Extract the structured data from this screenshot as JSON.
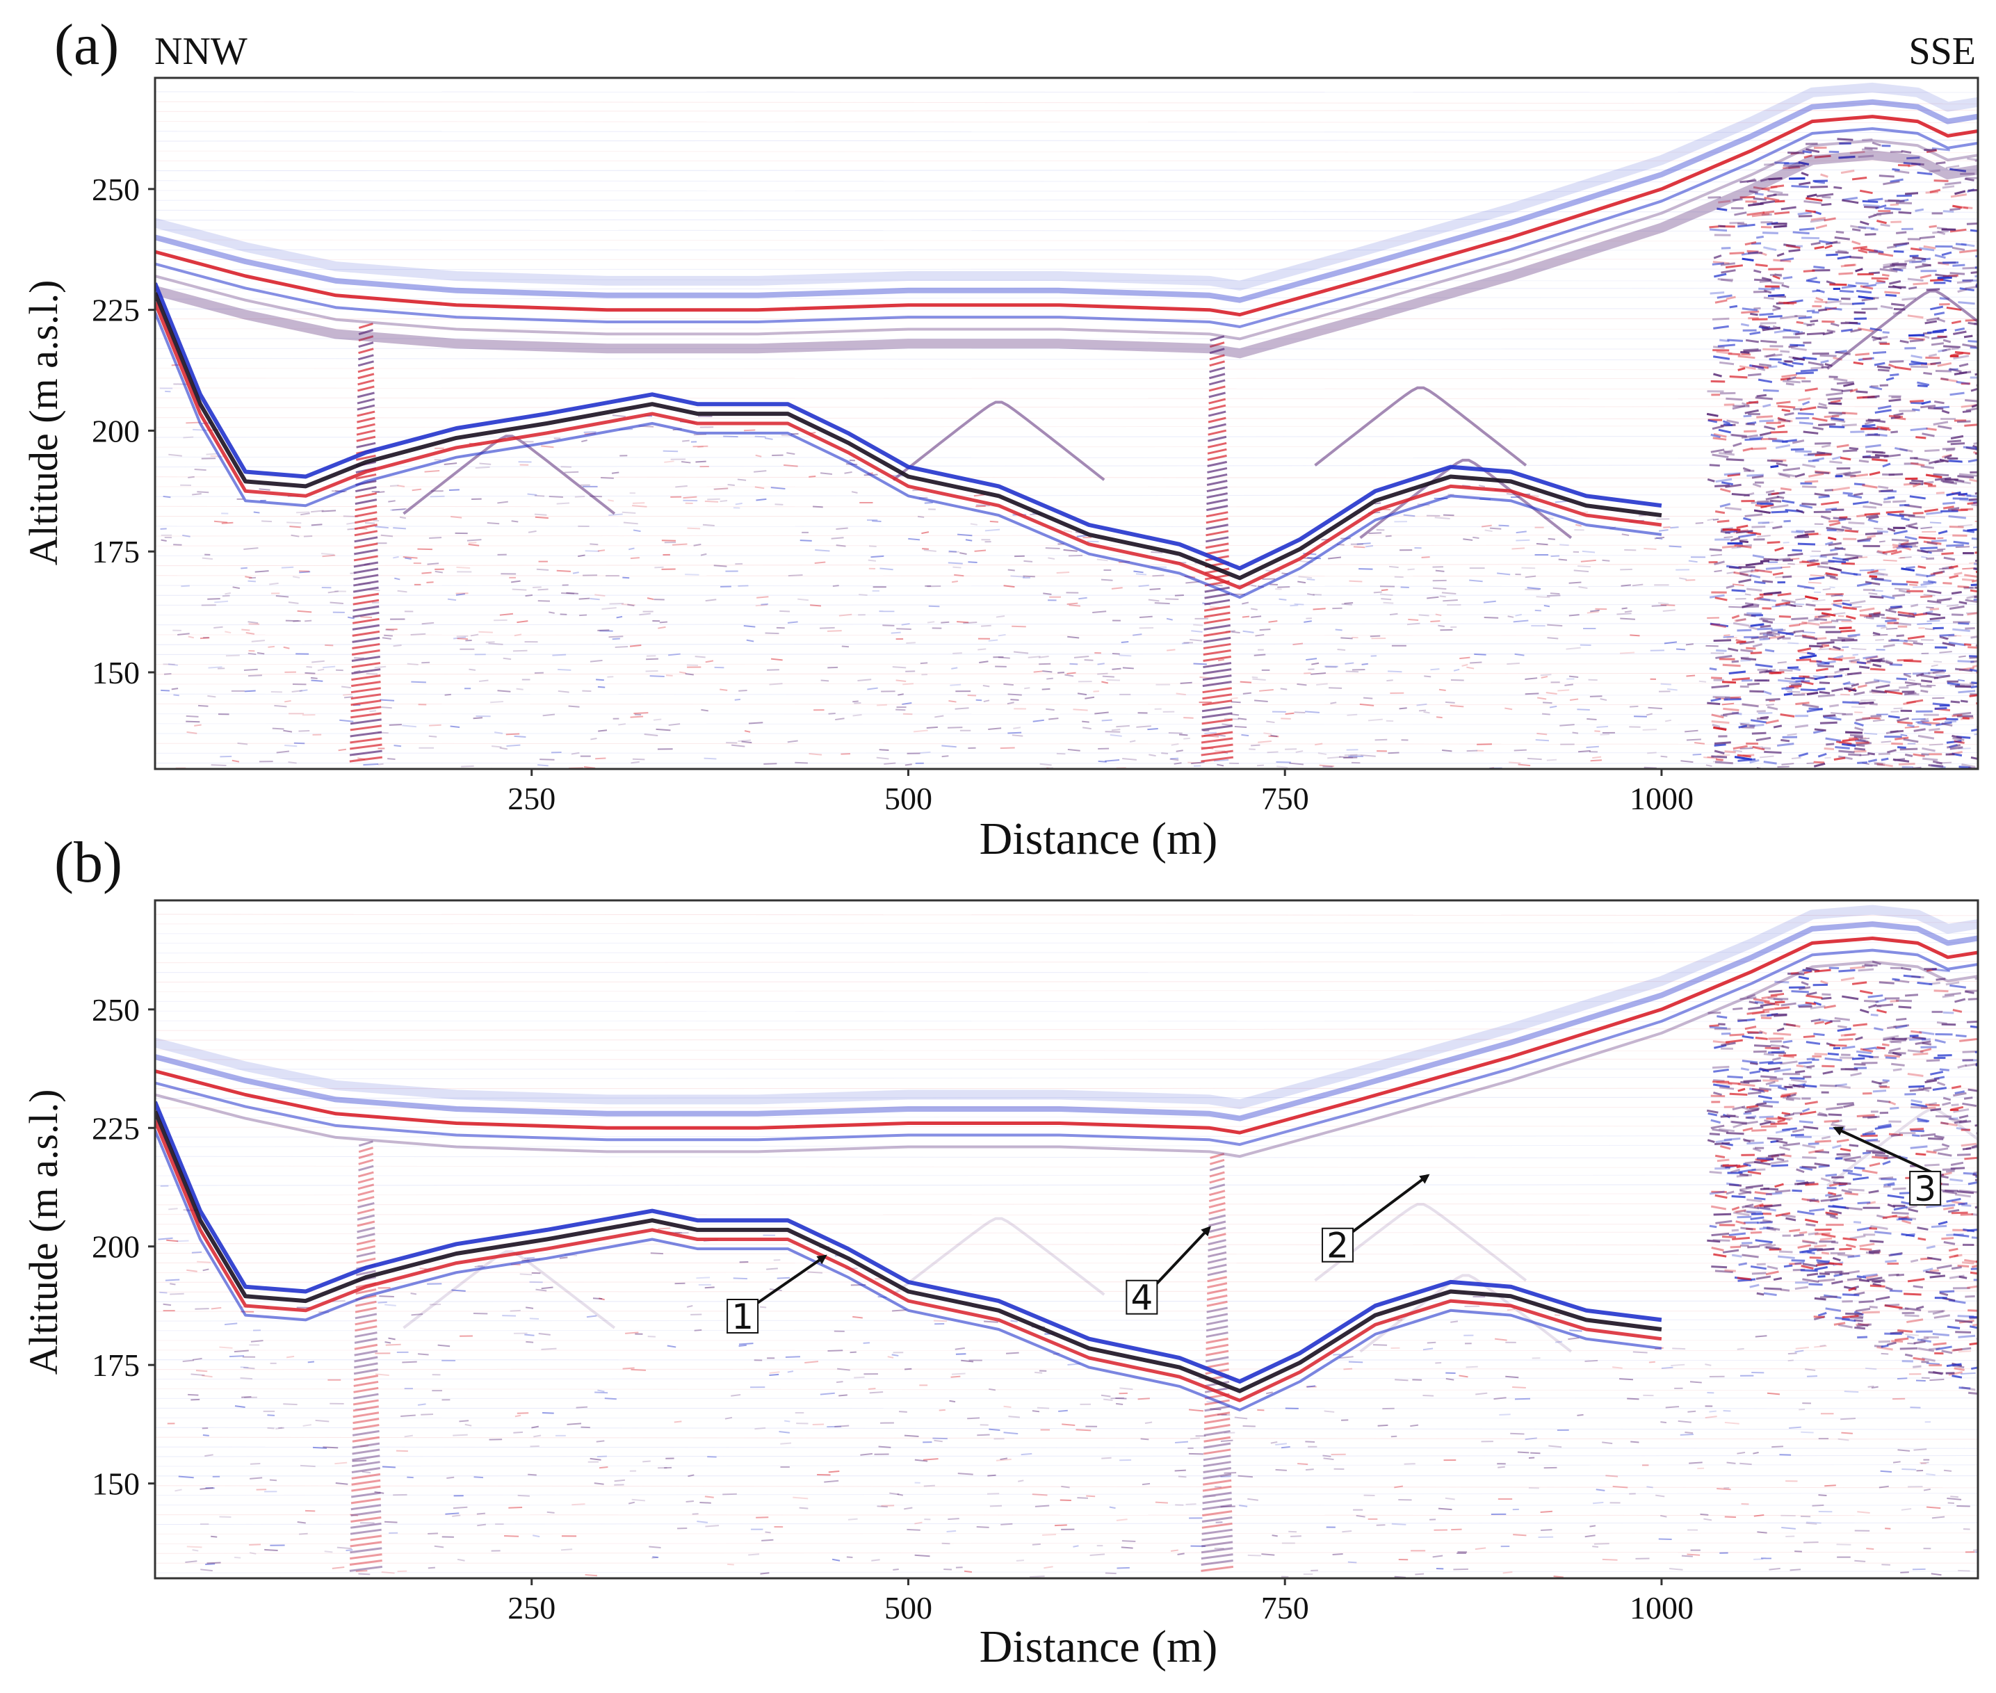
{
  "chart_data": [
    {
      "type": "line",
      "panel_label": "(a)",
      "direction_left": "NNW",
      "direction_right": "SSE",
      "xlabel": "Distance (m)",
      "ylabel": "Altitude (m a.s.l.)",
      "xlim": [
        0,
        1210
      ],
      "ylim": [
        130,
        273
      ],
      "xticks": [
        250,
        500,
        750,
        1000
      ],
      "yticks": [
        150,
        175,
        200,
        225,
        250
      ],
      "colors": {
        "red": "#d8202a",
        "blue": "#2233cc",
        "purple": "#5a2a78"
      },
      "series": [
        {
          "x": [
            0,
            60,
            120,
            200,
            300,
            400,
            500,
            600,
            700,
            720,
            800,
            900,
            1000,
            1060,
            1100,
            1140,
            1170,
            1190,
            1210
          ],
          "y": [
            237,
            232,
            228,
            226,
            225,
            225,
            226,
            226,
            225,
            224,
            231,
            240,
            250,
            258,
            264,
            265,
            264,
            261,
            262
          ]
        },
        {
          "x": [
            0,
            30,
            60,
            100,
            140,
            200,
            260,
            330,
            360,
            420,
            460,
            500,
            560,
            620,
            680,
            720,
            760,
            810,
            860,
            900,
            950,
            1000
          ],
          "y": [
            228,
            205,
            189,
            188,
            193,
            198,
            201,
            205,
            203,
            203,
            197,
            190,
            186,
            178,
            174,
            169,
            175,
            185,
            190,
            189,
            184,
            182
          ]
        }
      ]
    },
    {
      "type": "line",
      "panel_label": "(b)",
      "xlabel": "Distance (m)",
      "ylabel": "Altitude (m a.s.l.)",
      "xlim": [
        0,
        1210
      ],
      "ylim": [
        130,
        273
      ],
      "xticks": [
        250,
        500,
        750,
        1000
      ],
      "yticks": [
        150,
        175,
        200,
        225,
        250
      ],
      "colors": {
        "red": "#d8202a",
        "blue": "#2233cc",
        "purple": "#5a2a78"
      },
      "series": [
        {
          "x": [
            0,
            60,
            120,
            200,
            300,
            400,
            500,
            600,
            700,
            720,
            800,
            900,
            1000,
            1060,
            1100,
            1140,
            1170,
            1190,
            1210
          ],
          "y": [
            237,
            232,
            228,
            226,
            225,
            225,
            226,
            226,
            225,
            224,
            231,
            240,
            250,
            258,
            264,
            265,
            264,
            261,
            262
          ]
        },
        {
          "x": [
            0,
            30,
            60,
            100,
            140,
            200,
            260,
            330,
            360,
            420,
            460,
            500,
            560,
            620,
            680,
            720,
            760,
            810,
            860,
            900,
            950,
            1000
          ],
          "y": [
            228,
            205,
            189,
            188,
            193,
            198,
            201,
            205,
            203,
            203,
            197,
            190,
            186,
            178,
            174,
            169,
            175,
            185,
            190,
            189,
            184,
            182
          ]
        }
      ],
      "annotations": [
        {
          "label": "1",
          "x": 390,
          "y": 185,
          "arrow_to": [
            445,
            198
          ]
        },
        {
          "label": "2",
          "x": 785,
          "y": 200,
          "arrow_to": [
            845,
            215
          ]
        },
        {
          "label": "3",
          "x": 1175,
          "y": 212,
          "arrow_to": [
            1115,
            225
          ]
        },
        {
          "label": "4",
          "x": 655,
          "y": 189,
          "arrow_to": [
            700,
            204
          ]
        }
      ]
    }
  ]
}
